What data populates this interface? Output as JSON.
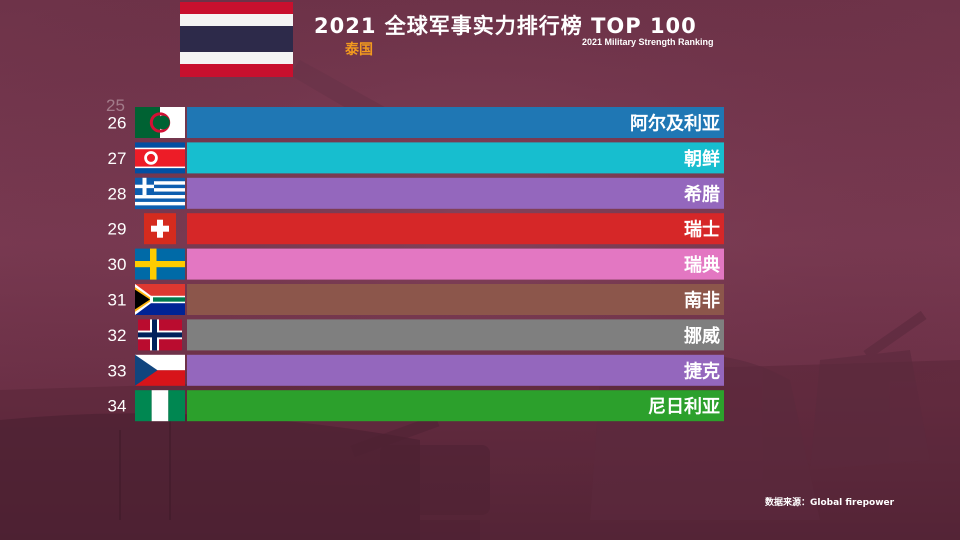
{
  "header": {
    "title": "2021 全球军事实力排行榜 TOP 100",
    "subtitle": "2021 Military Strength Ranking",
    "highlight_country": "泰国",
    "ghost_rank": "25",
    "ghost_label": "泰国"
  },
  "footer": {
    "source": "数据来源：Global firepower"
  },
  "colors": {
    "title_highlight": "#f39a1e"
  },
  "chart_data": {
    "type": "bar",
    "orientation": "horizontal",
    "title": "2021 全球军事实力排行榜 TOP 100",
    "categories": [
      "阿尔及利亚",
      "朝鲜",
      "希腊",
      "瑞士",
      "瑞典",
      "南非",
      "挪威",
      "捷克",
      "尼日利亚"
    ],
    "ranks": [
      "26",
      "27",
      "28",
      "29",
      "30",
      "31",
      "32",
      "33",
      "34"
    ],
    "flags": [
      "algeria-flag",
      "north-korea-flag",
      "greece-flag",
      "switzerland-flag",
      "sweden-flag",
      "south-africa-flag",
      "norway-flag",
      "czech-flag",
      "nigeria-flag"
    ],
    "bar_colors": [
      "#1f77b4",
      "#17becf",
      "#9467bd",
      "#d62728",
      "#e377c2",
      "#8c564b",
      "#7f7f7f",
      "#9467bd",
      "#2ca02c"
    ],
    "grid": false,
    "legend": "none"
  }
}
